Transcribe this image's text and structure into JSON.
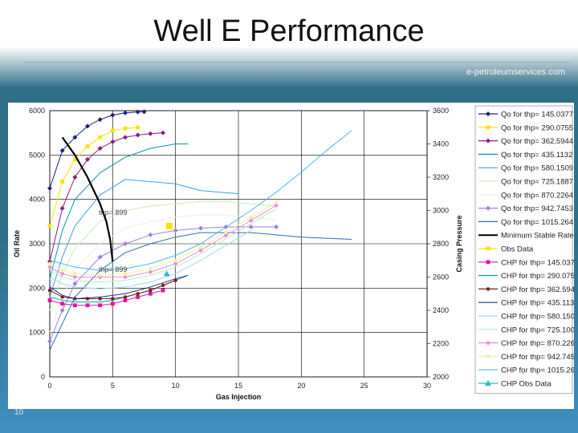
{
  "slide": {
    "title": "Well E Performance",
    "site": "e-petroleumservices.com",
    "number": "10"
  },
  "colors": {
    "background_top": "#2f6f86",
    "background_bottom": "#3f8fc0"
  },
  "chart_data": {
    "type": "line",
    "xlabel": "Gas Injection",
    "ylabel": "Oil Rate",
    "y2label": "Casing Pressure",
    "xlim": [
      0,
      30
    ],
    "ylim": [
      0,
      6000
    ],
    "y2lim": [
      2000,
      3600
    ],
    "x_ticks": [
      "0",
      "5",
      "10",
      "15",
      "20",
      "25",
      "30"
    ],
    "y_ticks": [
      "0",
      "1000",
      "2000",
      "3000",
      "4000",
      "5000",
      "6000"
    ],
    "y2_ticks": [
      "2000",
      "2200",
      "2400",
      "2600",
      "2800",
      "3000",
      "3200",
      "3400",
      "3600"
    ],
    "grid": true,
    "legend_position": "right",
    "annotations": [
      "thp= 899",
      "thp= 899"
    ],
    "series": [
      {
        "name": "Qo for thp= 145.0377",
        "color": "#1a237e",
        "marker": "diamond",
        "x": [
          0,
          1,
          2,
          3,
          4,
          5,
          6,
          7,
          7.5
        ],
        "y": [
          4250,
          5100,
          5400,
          5650,
          5800,
          5900,
          5950,
          5970,
          5975
        ]
      },
      {
        "name": "Qo for thp= 290.0755",
        "color": "#ffe100",
        "marker": "square",
        "x": [
          0,
          1,
          2,
          3,
          4,
          5,
          6,
          7
        ],
        "y": [
          3400,
          4400,
          4900,
          5200,
          5400,
          5550,
          5600,
          5620
        ]
      },
      {
        "name": "Qo for thp= 362.5944",
        "color": "#8b1a7e",
        "marker": "diamond",
        "x": [
          0,
          1,
          2,
          3,
          4,
          5,
          6,
          7,
          8,
          9
        ],
        "y": [
          2600,
          3800,
          4500,
          4900,
          5150,
          5300,
          5400,
          5450,
          5480,
          5500
        ]
      },
      {
        "name": "Qo for thp= 435.1132",
        "color": "#0097a7",
        "marker": "line",
        "x": [
          0,
          1,
          2,
          4,
          6,
          8,
          10,
          11
        ],
        "y": [
          2200,
          3300,
          4000,
          4600,
          4950,
          5150,
          5250,
          5250
        ]
      },
      {
        "name": "Qo for thp= 580.1509",
        "color": "#3aa0e8",
        "marker": "line",
        "x": [
          0,
          1,
          2,
          4,
          6,
          10,
          12,
          14,
          15
        ],
        "y": [
          1800,
          2700,
          3400,
          4100,
          4450,
          4350,
          4200,
          4150,
          4130
        ]
      },
      {
        "name": "Qo for thp= 725.1887",
        "color": "#c8f0b8",
        "marker": "line",
        "x": [
          0,
          1,
          2,
          4,
          6,
          8,
          10,
          12,
          14,
          16,
          18
        ],
        "y": [
          1500,
          2300,
          2900,
          3500,
          3750,
          3850,
          3900,
          3950,
          3950,
          3900,
          3850
        ]
      },
      {
        "name": "Qo for thp= 870.2264",
        "color": "#eeeedd",
        "marker": "line",
        "x": [
          0,
          1,
          2,
          4,
          6,
          8,
          10,
          12,
          14,
          16,
          18
        ],
        "y": [
          1000,
          1800,
          2400,
          3000,
          3350,
          3500,
          3600,
          3650,
          3650,
          3600,
          3550
        ]
      },
      {
        "name": "Qo for thp= 942.7453",
        "color": "#9e7fe0",
        "marker": "diamond",
        "x": [
          0,
          1,
          2,
          4,
          6,
          8,
          10,
          12,
          14,
          16,
          18
        ],
        "y": [
          800,
          1500,
          2100,
          2700,
          3000,
          3200,
          3300,
          3350,
          3380,
          3380,
          3380
        ]
      },
      {
        "name": "Qo for thp= 1015.264",
        "color": "#2e6db4",
        "marker": "line",
        "x": [
          0,
          2,
          4,
          6,
          8,
          10,
          12,
          14,
          16,
          18,
          20,
          24
        ],
        "y": [
          600,
          1800,
          2400,
          2800,
          3000,
          3150,
          3250,
          3250,
          3250,
          3200,
          3150,
          3100
        ]
      },
      {
        "name": "Minimum Stable Rate",
        "color": "#000000",
        "marker": "line",
        "x": [
          1,
          2,
          3,
          4,
          4.5,
          4.8,
          5
        ],
        "y": [
          5400,
          5000,
          4500,
          3900,
          3500,
          3100,
          2600
        ]
      },
      {
        "name": "Obs Data",
        "color": "#ffe100",
        "marker": "square",
        "x": [
          9.5
        ],
        "y": [
          3400
        ]
      },
      {
        "name": "CHP for thp= 145.037",
        "color": "#d61aa8",
        "marker": "square",
        "x": [
          0,
          1,
          2,
          3,
          4,
          5,
          6,
          7,
          8,
          9
        ],
        "y2": [
          2460,
          2440,
          2430,
          2430,
          2430,
          2440,
          2460,
          2480,
          2500,
          2520
        ]
      },
      {
        "name": "CHP for thp= 290.075",
        "color": "#00a8a8",
        "marker": "line",
        "x": [
          0,
          1,
          2,
          3,
          4,
          5,
          6,
          7,
          8,
          9,
          10,
          11
        ],
        "y2": [
          2480,
          2460,
          2450,
          2450,
          2450,
          2460,
          2480,
          2500,
          2520,
          2550,
          2580,
          2610
        ]
      },
      {
        "name": "CHP for thp= 362.594",
        "color": "#7a1f18",
        "marker": "dot",
        "x": [
          0,
          1,
          2,
          3,
          4,
          5,
          6,
          7,
          8,
          9,
          10
        ],
        "y2": [
          2520,
          2480,
          2470,
          2470,
          2470,
          2470,
          2480,
          2500,
          2520,
          2550,
          2580
        ]
      },
      {
        "name": "CHP for thp= 435.113",
        "color": "#1a2f8a",
        "marker": "line",
        "x": [
          0,
          1,
          2,
          4,
          6,
          8,
          10,
          11
        ],
        "y2": [
          2540,
          2490,
          2470,
          2480,
          2500,
          2540,
          2590,
          2610
        ]
      },
      {
        "name": "CHP for thp= 580.150",
        "color": "#9fd8f0",
        "marker": "line",
        "x": [
          0,
          1,
          2,
          4,
          6,
          8,
          10,
          12,
          14,
          16
        ],
        "y2": [
          2600,
          2560,
          2540,
          2530,
          2540,
          2570,
          2620,
          2700,
          2790,
          2880
        ]
      },
      {
        "name": "CHP for thp= 725.100",
        "color": "#b0f0c0",
        "marker": "line",
        "x": [
          0,
          1,
          2,
          4,
          6,
          8,
          10,
          12,
          14,
          16,
          18
        ],
        "y2": [
          2640,
          2600,
          2580,
          2570,
          2580,
          2610,
          2660,
          2740,
          2830,
          2920,
          3010
        ]
      },
      {
        "name": "CHP for thp= 870.226",
        "color": "#e890d8",
        "marker": "diamond",
        "x": [
          0,
          1,
          2,
          4,
          6,
          8,
          10,
          12,
          14,
          16,
          18
        ],
        "y2": [
          2660,
          2620,
          2600,
          2600,
          2600,
          2630,
          2680,
          2760,
          2850,
          2940,
          3030
        ]
      },
      {
        "name": "CHP for thp= 942.745",
        "color": "#f0f0a0",
        "marker": "dot",
        "x": [
          0,
          1,
          2,
          4,
          6,
          8,
          10,
          12,
          14,
          16,
          18
        ],
        "y2": [
          2680,
          2640,
          2620,
          2610,
          2620,
          2650,
          2700,
          2780,
          2870,
          2960,
          3050
        ]
      },
      {
        "name": "CHP for thp= 1015.26",
        "color": "#4cb8e8",
        "marker": "line",
        "x": [
          0,
          2,
          4,
          6,
          8,
          10,
          12,
          14,
          16,
          18,
          20,
          22,
          24
        ],
        "y2": [
          2700,
          2660,
          2640,
          2650,
          2680,
          2730,
          2800,
          2900,
          3000,
          3110,
          3230,
          3360,
          3480
        ]
      },
      {
        "name": "CHP Obs Data",
        "color": "#33b8c8",
        "marker": "triangle",
        "x": [
          9.3
        ],
        "y2": [
          2620
        ]
      }
    ]
  }
}
